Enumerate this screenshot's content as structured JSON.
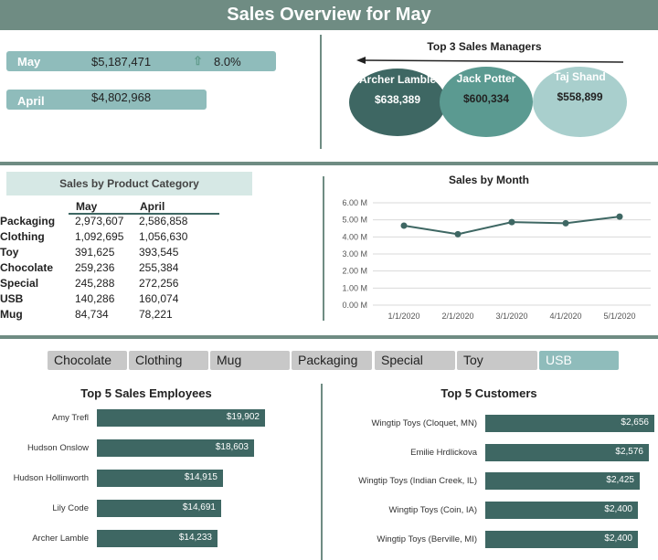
{
  "header": {
    "title": "Sales Overview for May"
  },
  "kpi": {
    "may_label": "May",
    "may_value": "$5,187,471",
    "growth": "8.0%",
    "april_label": "April",
    "april_value": "$4,802,968"
  },
  "managers": {
    "title": "Top 3 Sales Managers",
    "items": [
      {
        "name": "Archer Lamble",
        "amount": "$638,389",
        "color": "#3e6763"
      },
      {
        "name": "Jack Potter",
        "amount": "$600,334",
        "color": "#5b9a91"
      },
      {
        "name": "Taj Shand",
        "amount": "$558,899",
        "color": "#a9cfcd"
      }
    ]
  },
  "category": {
    "title": "Sales by Product Category",
    "col_may": "May",
    "col_april": "April",
    "rows": [
      {
        "name": "Packaging",
        "may": "2,973,607",
        "april": " 2,586,858"
      },
      {
        "name": "Clothing",
        "may": "1,092,695",
        "april": "1,056,630"
      },
      {
        "name": "Toy",
        "may": "391,625",
        "april": "393,545"
      },
      {
        "name": "Chocolate",
        "may": "259,236",
        "april": "255,384"
      },
      {
        "name": "Special",
        "may": "245,288",
        "april": "272,256"
      },
      {
        "name": "USB",
        "may": "140,286",
        "april": "160,074"
      },
      {
        "name": "Mug",
        "may": "84,734",
        "april": "78,221"
      }
    ]
  },
  "chart_data": {
    "type": "line",
    "title": "Sales by Month",
    "x": [
      "1/1/2020",
      "2/1/2020",
      "3/1/2020",
      "4/1/2020",
      "5/1/2020"
    ],
    "series": [
      {
        "values": [
          4.66,
          4.16,
          4.87,
          4.8,
          5.19
        ]
      }
    ],
    "yticks": [
      "0.00 M",
      "1.00 M",
      "2.00 M",
      "3.00 M",
      "4.00 M",
      "5.00 M",
      "6.00 M"
    ],
    "ylim": [
      0,
      6
    ],
    "grid": true,
    "line_color": "#3e6763"
  },
  "slicers": {
    "items": [
      "Chocolate",
      "Clothing",
      "Mug",
      "Packaging",
      "Special",
      "Toy",
      "USB"
    ],
    "selected": "USB"
  },
  "employees": {
    "title": "Top 5 Sales Employees",
    "items": [
      {
        "name": "Amy Trefl",
        "value": "$19,902",
        "amount": 19902
      },
      {
        "name": "Hudson Onslow",
        "value": "$18,603",
        "amount": 18603
      },
      {
        "name": "Hudson Hollinworth",
        "value": "$14,915",
        "amount": 14915
      },
      {
        "name": "Lily Code",
        "value": "$14,691",
        "amount": 14691
      },
      {
        "name": "Archer Lamble",
        "value": "$14,233",
        "amount": 14233
      }
    ]
  },
  "customers": {
    "title": "Top 5 Customers",
    "items": [
      {
        "name": "Wingtip Toys (Cloquet, MN)",
        "value": "$2,656",
        "amount": 2656
      },
      {
        "name": "Emilie Hrdlickova",
        "value": "$2,576",
        "amount": 2576
      },
      {
        "name": "Wingtip Toys (Indian Creek, IL)",
        "value": "$2,425",
        "amount": 2425
      },
      {
        "name": "Wingtip Toys (Coin, IA)",
        "value": "$2,400",
        "amount": 2400
      },
      {
        "name": "Wingtip Toys (Berville, MI)",
        "value": "$2,400",
        "amount": 2400
      }
    ]
  }
}
